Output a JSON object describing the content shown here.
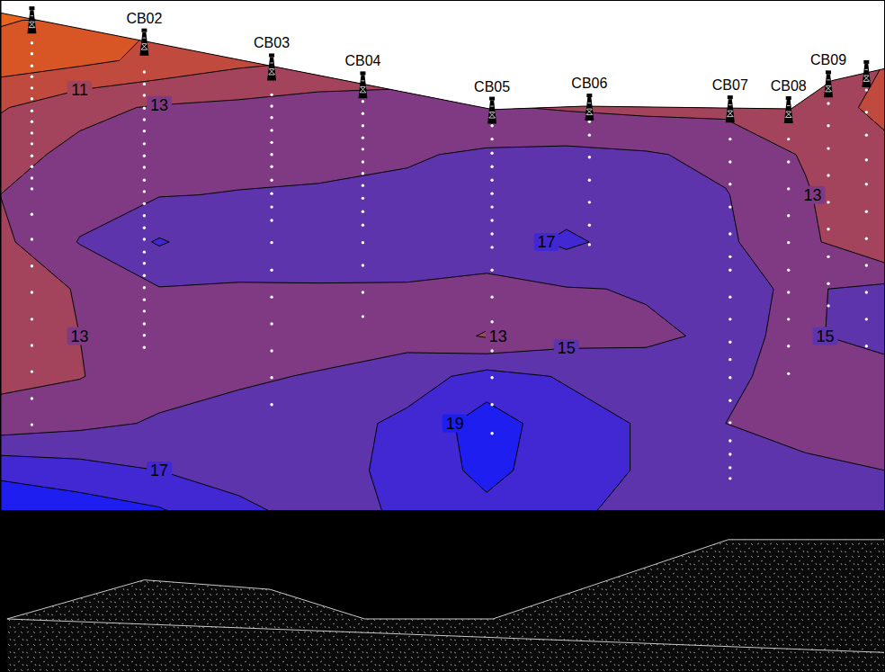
{
  "chart_data": {
    "type": "contour",
    "xlim": [
      0,
      100
    ],
    "ylim": [
      0,
      100
    ],
    "xticks": [],
    "yticks": [],
    "tick_labels": false,
    "levels": [
      7,
      9,
      11,
      13,
      15,
      17,
      19
    ],
    "colors": [
      "#e8641a",
      "#d85626",
      "#c04a3e",
      "#a3445c",
      "#803a84",
      "#5e34ac",
      "#4128d2",
      "#1e1ef0"
    ],
    "grid_x": [
      0,
      9,
      18,
      27,
      36,
      46,
      55,
      64,
      73,
      82,
      91,
      100
    ],
    "grid_y": [
      97,
      91,
      84,
      77,
      71,
      64,
      57,
      50,
      44,
      37,
      30,
      24
    ],
    "cells": [
      [
        6.8,
        7.5,
        9,
        10,
        11,
        11.5,
        12,
        12,
        12,
        12,
        12,
        11
      ],
      [
        8,
        8.5,
        9.5,
        10.5,
        11,
        11.5,
        12,
        12,
        12,
        12,
        12,
        11
      ],
      [
        10.8,
        12.5,
        13.2,
        13.5,
        14,
        14,
        13.2,
        12.8,
        12.5,
        12.5,
        12,
        10.5
      ],
      [
        12.3,
        13.5,
        14,
        14.3,
        14.5,
        14.8,
        15.3,
        15.5,
        15.2,
        14.5,
        12.8,
        11.5
      ],
      [
        13,
        14.2,
        14.9,
        15.1,
        15.2,
        15.4,
        15.5,
        15.9,
        15.5,
        15.1,
        13.2,
        11
      ],
      [
        12.5,
        15.1,
        17.2,
        15.6,
        15.7,
        15.6,
        15.8,
        17.4,
        16,
        15.3,
        13.5,
        11
      ],
      [
        11.5,
        13.2,
        14.9,
        14.9,
        14.9,
        14.9,
        14.6,
        14.9,
        15.1,
        15.3,
        14.8,
        15.5
      ],
      [
        11.5,
        13,
        14.2,
        14.3,
        14.4,
        14.3,
        12.8,
        14.2,
        14.8,
        15.2,
        14.8,
        15.6
      ],
      [
        12.5,
        12.9,
        14.3,
        14.8,
        15.1,
        16,
        17.8,
        16.8,
        15.5,
        15.2,
        14.6,
        14.3
      ],
      [
        13.8,
        14.5,
        15.2,
        15.5,
        16,
        17.5,
        20,
        17.8,
        16.8,
        15,
        14.5,
        14.3
      ],
      [
        18.5,
        17.8,
        17,
        16.5,
        16.2,
        17.6,
        19.6,
        17.8,
        16.8,
        15.6,
        15.3,
        15
      ],
      [
        20.5,
        20,
        19.2,
        17.3,
        16.5,
        17.2,
        18.5,
        17.5,
        16.2,
        15.6,
        15.4,
        15.2
      ]
    ],
    "surface": {
      "x": [
        0,
        55.7,
        66.1,
        89.4,
        94,
        100
      ],
      "y": [
        98.1,
        83.7,
        84.2,
        83.8,
        88,
        89.8
      ]
    },
    "rock_top": {
      "x": [
        0.8,
        16.3,
        30.5,
        41.2,
        55.7,
        82.3,
        100
      ],
      "y": [
        7.9,
        13.7,
        12.3,
        7.9,
        7.9,
        19.7,
        19.7
      ]
    },
    "rock_boundary": {
      "x": [
        0.8,
        100
      ],
      "y": [
        7.9,
        2.9
      ]
    },
    "boreholes": [
      {
        "name": null,
        "x": 3.6,
        "samples": [
          95.3,
          93.6,
          92.0,
          90.2,
          88.6,
          86.9,
          85.3,
          83.5,
          81.9,
          80.2,
          78.6,
          76.8,
          75.2,
          73.5,
          71.9,
          68.1,
          64.4,
          60.4,
          56.5,
          52.5,
          48.6,
          44.7,
          40.7,
          36.8
        ]
      },
      {
        "name": "CB02",
        "x": 16.3,
        "samples": [
          89.3,
          87.5,
          85.8,
          83.9,
          82.2,
          80.5,
          78.6,
          76.8,
          75.1,
          73.2,
          71.5,
          69.7,
          67.9,
          66.1,
          64.4,
          62.5,
          60.8,
          59.0,
          57.2,
          55.4,
          53.7,
          51.8,
          50.1,
          48.3
        ]
      },
      {
        "name": "CB03",
        "x": 30.7,
        "samples": [
          85.9,
          84.2,
          82.5,
          80.6,
          78.8,
          77.0,
          75.2,
          73.2,
          71.2,
          69.2,
          67.2,
          63.9,
          59.8,
          55.8,
          51.8,
          47.8,
          43.8,
          39.8
        ]
      },
      {
        "name": "CB04",
        "x": 41.0,
        "samples": [
          86.6,
          84.9,
          83.1,
          81.3,
          79.5,
          77.8,
          75.9,
          74.2,
          72.4,
          70.5,
          68.5,
          66.5,
          63.9,
          60.5,
          56.5,
          52.9
        ]
      },
      {
        "name": "CB05",
        "x": 55.6,
        "samples": [
          81.3,
          79.3,
          77.2,
          75.2,
          73.2,
          71.2,
          69.2,
          67.2,
          65.2,
          63.2,
          59.8,
          55.8,
          52.1,
          47.8,
          43.8,
          39.8,
          35.5
        ]
      },
      {
        "name": "CB06",
        "x": 66.6,
        "samples": [
          81.9,
          79.9,
          76.6,
          73.2,
          69.9,
          66.5,
          63.6
        ]
      },
      {
        "name": "CB07",
        "x": 82.5,
        "samples": [
          82.6,
          79.3,
          75.9,
          72.6,
          69.2,
          65.2,
          61.8,
          59.8,
          55.8,
          52.5,
          49.1,
          46.5,
          43.8,
          40.4,
          37.1,
          34.4,
          32.4,
          30.4,
          28.8
        ]
      },
      {
        "name": "CB08",
        "x": 89.1,
        "samples": [
          82.6,
          79.3,
          75.9,
          71.9,
          67.9,
          63.9,
          59.8,
          56.5,
          52.5,
          48.5,
          44.4
        ]
      },
      {
        "name": "CB09",
        "x": 93.6,
        "samples": [
          84.6,
          81.3,
          77.9,
          73.9,
          69.9,
          65.9,
          61.8,
          57.8,
          54.5,
          50.7
        ]
      },
      {
        "name": null,
        "x": 97.9,
        "samples": [
          86.6,
          83.3,
          79.9,
          76.2,
          72.6,
          68.5,
          64.5,
          60.5,
          56.5,
          52.5,
          48.5
        ]
      }
    ]
  }
}
